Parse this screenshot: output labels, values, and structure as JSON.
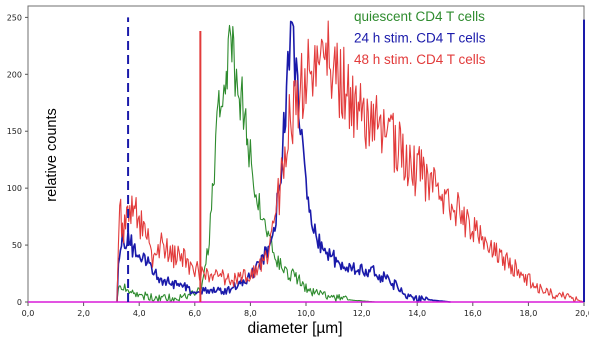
{
  "chart_data": {
    "type": "line",
    "title": "",
    "xlabel": "diameter [µm]",
    "ylabel": "relative counts",
    "xlim": [
      0,
      20
    ],
    "ylim": [
      0,
      260
    ],
    "x_ticks": [
      "0,0",
      "2,0",
      "4,0",
      "6,0",
      "8,0",
      "10,0",
      "12,0",
      "14,0",
      "16,0",
      "18,0",
      "20,0"
    ],
    "y_ticks": [
      "0",
      "50",
      "100",
      "150",
      "200",
      "250"
    ],
    "grid": false,
    "legend_position": "top-right",
    "series": [
      {
        "name": "quiescent CD4 T cells",
        "color": "#2e8b2e",
        "style": "solid",
        "points": [
          [
            3.2,
            0
          ],
          [
            3.25,
            10
          ],
          [
            3.4,
            14
          ],
          [
            3.6,
            8
          ],
          [
            3.8,
            10
          ],
          [
            4.0,
            6
          ],
          [
            4.3,
            5
          ],
          [
            4.6,
            3
          ],
          [
            5.0,
            4
          ],
          [
            5.4,
            3
          ],
          [
            5.8,
            5
          ],
          [
            6.2,
            10
          ],
          [
            6.4,
            30
          ],
          [
            6.6,
            80
          ],
          [
            6.7,
            120
          ],
          [
            6.8,
            150
          ],
          [
            6.9,
            170
          ],
          [
            7.0,
            180
          ],
          [
            7.1,
            195
          ],
          [
            7.2,
            210
          ],
          [
            7.3,
            226
          ],
          [
            7.4,
            215
          ],
          [
            7.5,
            200
          ],
          [
            7.6,
            185
          ],
          [
            7.7,
            175
          ],
          [
            7.8,
            160
          ],
          [
            7.9,
            145
          ],
          [
            8.0,
            125
          ],
          [
            8.2,
            100
          ],
          [
            8.4,
            80
          ],
          [
            8.6,
            60
          ],
          [
            8.8,
            45
          ],
          [
            9.0,
            35
          ],
          [
            9.2,
            28
          ],
          [
            9.4,
            25
          ],
          [
            9.6,
            22
          ],
          [
            9.8,
            18
          ],
          [
            10.0,
            12
          ],
          [
            10.3,
            8
          ],
          [
            10.6,
            6
          ],
          [
            11.0,
            4
          ],
          [
            11.5,
            2
          ],
          [
            12.0,
            1
          ],
          [
            12.5,
            0
          ]
        ]
      },
      {
        "name": "24 h stim. CD4 T cells",
        "color": "#1a1aaa",
        "style": "solid",
        "points": [
          [
            3.2,
            0
          ],
          [
            3.25,
            40
          ],
          [
            3.4,
            55
          ],
          [
            3.6,
            58
          ],
          [
            3.8,
            45
          ],
          [
            4.0,
            40
          ],
          [
            4.2,
            38
          ],
          [
            4.4,
            30
          ],
          [
            4.6,
            25
          ],
          [
            4.8,
            20
          ],
          [
            5.0,
            18
          ],
          [
            5.2,
            15
          ],
          [
            5.4,
            14
          ],
          [
            5.6,
            14
          ],
          [
            5.8,
            12
          ],
          [
            6.0,
            10
          ],
          [
            6.3,
            10
          ],
          [
            6.6,
            9
          ],
          [
            7.0,
            10
          ],
          [
            7.3,
            12
          ],
          [
            7.6,
            15
          ],
          [
            7.9,
            20
          ],
          [
            8.2,
            28
          ],
          [
            8.4,
            35
          ],
          [
            8.6,
            45
          ],
          [
            8.8,
            60
          ],
          [
            9.0,
            90
          ],
          [
            9.1,
            120
          ],
          [
            9.2,
            150
          ],
          [
            9.3,
            185
          ],
          [
            9.4,
            215
          ],
          [
            9.5,
            230
          ],
          [
            9.6,
            212
          ],
          [
            9.7,
            190
          ],
          [
            9.8,
            160
          ],
          [
            9.9,
            130
          ],
          [
            10.0,
            100
          ],
          [
            10.2,
            75
          ],
          [
            10.4,
            55
          ],
          [
            10.6,
            45
          ],
          [
            10.8,
            40
          ],
          [
            11.0,
            38
          ],
          [
            11.3,
            33
          ],
          [
            11.6,
            30
          ],
          [
            12.0,
            30
          ],
          [
            12.3,
            28
          ],
          [
            12.6,
            24
          ],
          [
            13.0,
            20
          ],
          [
            13.3,
            12
          ],
          [
            13.6,
            6
          ],
          [
            14.0,
            3
          ],
          [
            14.4,
            2
          ],
          [
            14.8,
            1
          ],
          [
            15.2,
            0
          ]
        ]
      },
      {
        "name": "48 h stim. CD4 T cells",
        "color": "#e23b3b",
        "style": "solid",
        "points": [
          [
            3.2,
            0
          ],
          [
            3.3,
            85
          ],
          [
            3.4,
            60
          ],
          [
            3.55,
            75
          ],
          [
            3.7,
            80
          ],
          [
            3.85,
            95
          ],
          [
            4.0,
            70
          ],
          [
            4.2,
            75
          ],
          [
            4.4,
            40
          ],
          [
            4.6,
            42
          ],
          [
            4.8,
            50
          ],
          [
            5.0,
            45
          ],
          [
            5.2,
            40
          ],
          [
            5.4,
            42
          ],
          [
            5.6,
            38
          ],
          [
            5.8,
            32
          ],
          [
            6.0,
            30
          ],
          [
            6.3,
            25
          ],
          [
            6.6,
            22
          ],
          [
            7.0,
            22
          ],
          [
            7.4,
            20
          ],
          [
            7.8,
            22
          ],
          [
            8.2,
            25
          ],
          [
            8.5,
            35
          ],
          [
            8.8,
            60
          ],
          [
            9.0,
            90
          ],
          [
            9.2,
            120
          ],
          [
            9.4,
            160
          ],
          [
            9.6,
            180
          ],
          [
            9.8,
            190
          ],
          [
            10.0,
            185
          ],
          [
            10.2,
            205
          ],
          [
            10.4,
            210
          ],
          [
            10.6,
            220
          ],
          [
            10.8,
            210
          ],
          [
            11.0,
            205
          ],
          [
            11.2,
            195
          ],
          [
            11.4,
            190
          ],
          [
            11.6,
            175
          ],
          [
            11.8,
            165
          ],
          [
            12.0,
            170
          ],
          [
            12.2,
            160
          ],
          [
            12.5,
            155
          ],
          [
            12.8,
            150
          ],
          [
            13.1,
            145
          ],
          [
            13.4,
            130
          ],
          [
            13.7,
            120
          ],
          [
            14.0,
            115
          ],
          [
            14.3,
            110
          ],
          [
            14.6,
            100
          ],
          [
            14.9,
            90
          ],
          [
            15.2,
            85
          ],
          [
            15.5,
            80
          ],
          [
            15.8,
            70
          ],
          [
            16.1,
            60
          ],
          [
            16.4,
            55
          ],
          [
            16.7,
            45
          ],
          [
            17.0,
            40
          ],
          [
            17.3,
            35
          ],
          [
            17.6,
            28
          ],
          [
            17.9,
            22
          ],
          [
            18.2,
            15
          ],
          [
            18.5,
            10
          ],
          [
            18.8,
            8
          ],
          [
            19.2,
            5
          ],
          [
            19.6,
            3
          ],
          [
            20.0,
            0
          ]
        ]
      }
    ],
    "markers": [
      {
        "x": 3.6,
        "color": "#1a1aaa",
        "style": "dashed",
        "y_top": 250
      },
      {
        "x": 6.2,
        "color": "#e23b3b",
        "style": "solid",
        "y_top": 238
      },
      {
        "x": 20.0,
        "color": "#e23b3b",
        "style": "solid",
        "y_top": 240
      },
      {
        "x": 20.0,
        "color": "#1a1aaa",
        "style": "solid",
        "y_top": 248
      }
    ],
    "baseline_color": "#d81bd8"
  }
}
